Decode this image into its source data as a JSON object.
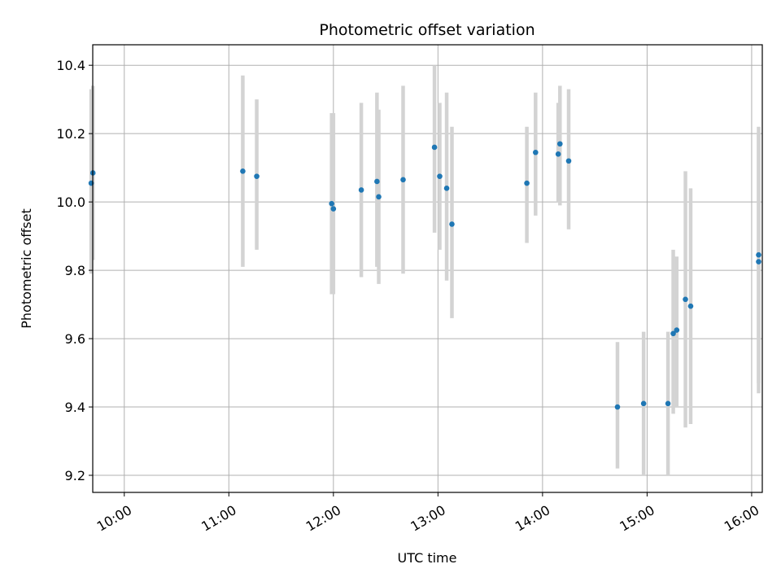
{
  "chart_data": {
    "type": "scatter",
    "title": "Photometric offset variation",
    "xlabel": "UTC time",
    "ylabel": "Photometric offset",
    "x_ticks": [
      "10:00",
      "11:00",
      "12:00",
      "13:00",
      "14:00",
      "15:00",
      "16:00"
    ],
    "y_ticks": [
      "9.2",
      "9.4",
      "9.6",
      "9.8",
      "10.0",
      "10.2",
      "10.4"
    ],
    "xlim": [
      "09:42",
      "16:06"
    ],
    "ylim": [
      9.15,
      10.46
    ],
    "grid": true,
    "point_color": "#1f77b4",
    "errorbar_color": "#d3d3d3",
    "points": [
      {
        "x": "09:41",
        "y": 10.055,
        "yerr_low": 9.79,
        "yerr_high": 10.33
      },
      {
        "x": "09:42",
        "y": 10.085,
        "yerr_low": 9.83,
        "yerr_high": 10.34
      },
      {
        "x": "11:08",
        "y": 10.09,
        "yerr_low": 9.81,
        "yerr_high": 10.37
      },
      {
        "x": "11:16",
        "y": 10.075,
        "yerr_low": 9.86,
        "yerr_high": 10.3
      },
      {
        "x": "11:59",
        "y": 9.995,
        "yerr_low": 9.73,
        "yerr_high": 10.26
      },
      {
        "x": "12:00",
        "y": 9.98,
        "yerr_low": 9.73,
        "yerr_high": 10.26
      },
      {
        "x": "12:16",
        "y": 10.035,
        "yerr_low": 9.78,
        "yerr_high": 10.29
      },
      {
        "x": "12:25",
        "y": 10.06,
        "yerr_low": 9.81,
        "yerr_high": 10.32
      },
      {
        "x": "12:26",
        "y": 10.015,
        "yerr_low": 9.76,
        "yerr_high": 10.27
      },
      {
        "x": "12:40",
        "y": 10.065,
        "yerr_low": 9.79,
        "yerr_high": 10.34
      },
      {
        "x": "12:58",
        "y": 10.16,
        "yerr_low": 9.91,
        "yerr_high": 10.4
      },
      {
        "x": "13:01",
        "y": 10.075,
        "yerr_low": 9.86,
        "yerr_high": 10.29
      },
      {
        "x": "13:05",
        "y": 10.04,
        "yerr_low": 9.77,
        "yerr_high": 10.32
      },
      {
        "x": "13:08",
        "y": 9.935,
        "yerr_low": 9.66,
        "yerr_high": 10.22
      },
      {
        "x": "13:51",
        "y": 10.055,
        "yerr_low": 9.88,
        "yerr_high": 10.22
      },
      {
        "x": "13:56",
        "y": 10.145,
        "yerr_low": 9.96,
        "yerr_high": 10.32
      },
      {
        "x": "14:09",
        "y": 10.14,
        "yerr_low": 10.0,
        "yerr_high": 10.29
      },
      {
        "x": "14:10",
        "y": 10.17,
        "yerr_low": 9.99,
        "yerr_high": 10.34
      },
      {
        "x": "14:15",
        "y": 10.12,
        "yerr_low": 9.92,
        "yerr_high": 10.33
      },
      {
        "x": "14:43",
        "y": 9.4,
        "yerr_low": 9.22,
        "yerr_high": 9.59
      },
      {
        "x": "14:58",
        "y": 9.41,
        "yerr_low": 9.2,
        "yerr_high": 9.62
      },
      {
        "x": "15:12",
        "y": 9.41,
        "yerr_low": 9.2,
        "yerr_high": 9.62
      },
      {
        "x": "15:15",
        "y": 9.615,
        "yerr_low": 9.38,
        "yerr_high": 9.86
      },
      {
        "x": "15:17",
        "y": 9.625,
        "yerr_low": 9.4,
        "yerr_high": 9.84
      },
      {
        "x": "15:22",
        "y": 9.715,
        "yerr_low": 9.34,
        "yerr_high": 10.09
      },
      {
        "x": "15:25",
        "y": 9.695,
        "yerr_low": 9.35,
        "yerr_high": 10.04
      },
      {
        "x": "16:04",
        "y": 9.825,
        "yerr_low": 9.44,
        "yerr_high": 10.2
      },
      {
        "x": "16:04",
        "y": 9.845,
        "yerr_low": 9.47,
        "yerr_high": 10.22
      }
    ]
  }
}
